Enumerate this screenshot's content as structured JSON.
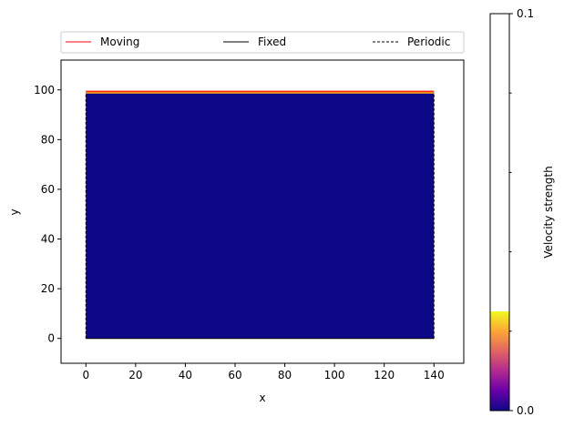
{
  "chart_data": [
    {
      "type": "heatmap",
      "title": "",
      "xlabel": "x",
      "ylabel": "y",
      "xlim": [
        -10,
        152
      ],
      "ylim": [
        -10,
        112
      ],
      "xticks": [
        0,
        20,
        40,
        60,
        80,
        100,
        120,
        140
      ],
      "yticks": [
        0,
        20,
        40,
        60,
        80,
        100
      ],
      "domain": {
        "x": [
          0,
          140
        ],
        "y": [
          0,
          99
        ]
      },
      "field": {
        "fill_color": "#0d0887",
        "value": 0.0,
        "top_band": {
          "y": [
            98.5,
            99.5
          ],
          "color_start": "#f0a830",
          "color_end": "#ff6a00"
        }
      },
      "boundaries": [
        {
          "name": "Moving",
          "style": "solid",
          "color": "#ff0000",
          "segments": [
            [
              [
                0,
                99.5
              ],
              [
                140,
                99.5
              ]
            ]
          ]
        },
        {
          "name": "Fixed",
          "style": "solid",
          "color": "#000000",
          "segments": [
            [
              [
                0,
                0
              ],
              [
                140,
                0
              ]
            ]
          ]
        },
        {
          "name": "Periodic",
          "style": "dashed",
          "color": "#000000",
          "segments": [
            [
              [
                0,
                0
              ],
              [
                0,
                99
              ]
            ],
            [
              [
                140,
                0
              ],
              [
                140,
                99
              ]
            ]
          ]
        }
      ],
      "legend": {
        "placement": "top",
        "entries": [
          {
            "label": "Moving",
            "color": "#ff0000",
            "style": "solid"
          },
          {
            "label": "Fixed",
            "color": "#000000",
            "style": "solid"
          },
          {
            "label": "Periodic",
            "color": "#000000",
            "style": "dashed"
          }
        ]
      },
      "grid": false
    },
    {
      "type": "heatmap",
      "colorbar": true,
      "label": "Velocity strength",
      "range": [
        0.0,
        0.1
      ],
      "tick_labels": [
        "0.0",
        "0.1"
      ],
      "minor_ticks": [
        0.02,
        0.04,
        0.06,
        0.08
      ],
      "filled_fraction": 0.25,
      "colormap": [
        "#0d0887",
        "#6a00a8",
        "#b12a90",
        "#e16462",
        "#fca636",
        "#f0f921"
      ]
    }
  ]
}
